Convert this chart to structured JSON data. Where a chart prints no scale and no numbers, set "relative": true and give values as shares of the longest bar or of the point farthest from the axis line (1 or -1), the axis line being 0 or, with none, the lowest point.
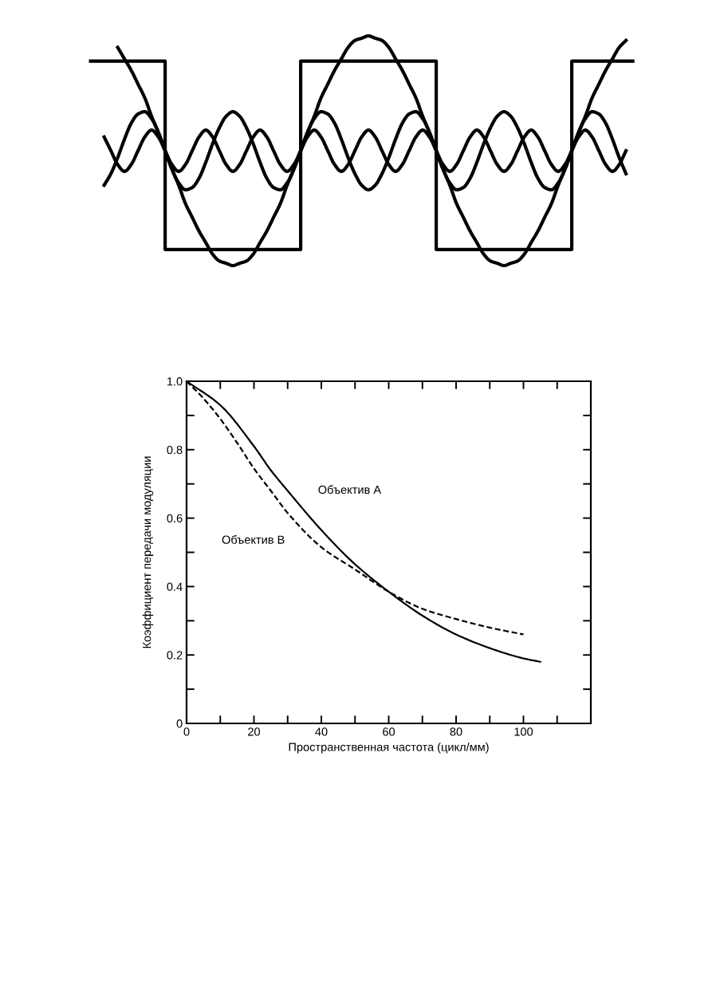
{
  "chart_data": [
    {
      "type": "line",
      "relative": true,
      "categories": [
        null,
        null,
        null,
        null,
        null,
        null,
        null,
        null,
        null,
        null,
        null,
        null,
        null,
        null,
        null,
        null,
        null,
        null,
        null,
        null,
        null,
        null,
        null,
        null,
        null,
        null,
        null,
        null,
        null,
        null,
        null,
        null,
        null,
        null,
        null,
        null,
        null,
        null,
        null,
        null,
        null,
        null,
        null,
        null,
        null,
        null,
        null,
        null,
        null,
        null,
        null,
        null,
        null,
        null,
        null,
        null,
        null,
        null,
        null,
        null,
        null,
        null,
        null,
        null,
        null,
        null,
        null,
        null,
        null,
        null,
        null,
        null,
        null,
        null,
        null,
        null,
        null,
        null,
        null,
        null,
        null
      ],
      "series": [
        {
          "type": "step",
          "color": "#000000",
          "values": [
            0.89,
            0.89,
            0.89,
            0.89,
            0.89,
            0.89,
            0.89,
            0.89,
            0.89,
            0.89,
            0.89,
            0.07,
            0.07,
            0.07,
            0.07,
            0.07,
            0.07,
            0.07,
            0.07,
            0.07,
            0.07,
            0.07,
            0.07,
            0.07,
            0.07,
            0.07,
            0.07,
            0.07,
            0.07,
            0.07,
            0.07,
            0.89,
            0.89,
            0.89,
            0.89,
            0.89,
            0.89,
            0.89,
            0.89,
            0.89,
            0.89,
            0.89,
            0.89,
            0.89,
            0.89,
            0.89,
            0.89,
            0.89,
            0.89,
            0.89,
            0.89,
            0.07,
            0.07,
            0.07,
            0.07,
            0.07,
            0.07,
            0.07,
            0.07,
            0.07,
            0.07,
            0.07,
            0.07,
            0.07,
            0.07,
            0.07,
            0.07,
            0.07,
            0.07,
            0.07,
            0.07,
            0.89,
            0.89,
            0.89,
            0.89,
            0.89,
            0.89,
            0.89,
            0.89,
            0.89,
            0.89
          ]
        },
        {
          "type": "line",
          "color": "#000000",
          "values": [
            null,
            null,
            null,
            null,
            0.95,
            0.9,
            0.85,
            0.79,
            0.73,
            0.65,
            0.58,
            0.5,
            0.42,
            0.35,
            0.27,
            0.21,
            0.15,
            0.1,
            0.05,
            0.02,
            0.01,
            0,
            0.01,
            0.02,
            0.05,
            0.1,
            0.15,
            0.21,
            0.27,
            0.35,
            0.42,
            0.5,
            0.58,
            0.65,
            0.73,
            0.79,
            0.85,
            0.9,
            0.95,
            0.98,
            0.99,
            1,
            0.99,
            0.98,
            0.95,
            0.9,
            0.85,
            0.79,
            0.73,
            0.65,
            0.58,
            0.5,
            0.42,
            0.35,
            0.27,
            0.21,
            0.15,
            0.1,
            0.05,
            0.02,
            0.01,
            0,
            0.01,
            0.02,
            0.05,
            0.1,
            0.15,
            0.21,
            0.27,
            0.35,
            0.42,
            0.5,
            0.58,
            0.65,
            0.73,
            0.79,
            0.85,
            0.9,
            0.95,
            0.98,
            null
          ]
        },
        {
          "type": "line",
          "color": "#000000",
          "values": [
            null,
            null,
            0.35,
            0.4,
            0.47,
            0.55,
            0.62,
            0.66,
            0.67,
            0.64,
            0.58,
            0.5,
            0.42,
            0.36,
            0.33,
            0.34,
            0.38,
            0.45,
            0.53,
            0.6,
            0.65,
            0.67,
            0.65,
            0.6,
            0.53,
            0.45,
            0.38,
            0.34,
            0.33,
            0.36,
            0.42,
            0.5,
            0.58,
            0.64,
            0.67,
            0.66,
            0.62,
            0.55,
            0.47,
            0.4,
            0.35,
            0.33,
            0.35,
            0.4,
            0.47,
            0.55,
            0.62,
            0.66,
            0.67,
            0.64,
            0.58,
            0.5,
            0.42,
            0.36,
            0.33,
            0.34,
            0.38,
            0.45,
            0.53,
            0.6,
            0.65,
            0.67,
            0.65,
            0.6,
            0.53,
            0.45,
            0.38,
            0.34,
            0.33,
            0.36,
            0.42,
            0.5,
            0.58,
            0.64,
            0.67,
            0.66,
            0.62,
            0.55,
            0.47,
            0.4,
            null
          ]
        },
        {
          "type": "line",
          "color": "#000000",
          "values": [
            null,
            null,
            0.56,
            0.5,
            0.44,
            0.41,
            0.44,
            0.5,
            0.56,
            0.59,
            0.56,
            0.5,
            0.44,
            0.41,
            0.44,
            0.5,
            0.56,
            0.59,
            0.56,
            0.5,
            0.44,
            0.41,
            0.44,
            0.5,
            0.56,
            0.59,
            0.56,
            0.5,
            0.44,
            0.41,
            0.44,
            0.5,
            0.56,
            0.59,
            0.56,
            0.5,
            0.44,
            0.41,
            0.44,
            0.5,
            0.56,
            0.59,
            0.56,
            0.5,
            0.44,
            0.41,
            0.44,
            0.5,
            0.56,
            0.59,
            0.56,
            0.5,
            0.44,
            0.41,
            0.44,
            0.5,
            0.56,
            0.59,
            0.56,
            0.5,
            0.44,
            0.41,
            0.44,
            0.5,
            0.56,
            0.59,
            0.56,
            0.5,
            0.44,
            0.41,
            0.44,
            0.5,
            0.56,
            0.59,
            0.56,
            0.5,
            0.44,
            0.41,
            0.44,
            0.5,
            null
          ]
        }
      ]
    },
    {
      "type": "line",
      "xlabel": "Пространственная частота (цикл/мм)",
      "ylabel": "Коэффициент передачи модуляции",
      "xlim": [
        0,
        120
      ],
      "ylim": [
        0,
        1.0
      ],
      "xticks": [
        0,
        {
          "value": 10,
          "label": null
        },
        20,
        {
          "value": 30,
          "label": null
        },
        40,
        {
          "value": 50,
          "label": null
        },
        60,
        {
          "value": 70,
          "label": null
        },
        80,
        {
          "value": 90,
          "label": null
        },
        100,
        {
          "value": 110,
          "label": null
        }
      ],
      "yticks": [
        0,
        {
          "value": 0.1,
          "label": null
        },
        0.2,
        {
          "value": 0.3,
          "label": null
        },
        0.4,
        {
          "value": 0.5,
          "label": null
        },
        0.6,
        {
          "value": 0.7,
          "label": null
        },
        0.8,
        {
          "value": 0.9,
          "label": null
        },
        {
          "value": 1.0,
          "label": "1.0"
        }
      ],
      "series": [
        {
          "name": "Объектив А",
          "color": "#000000",
          "line_style": "solid",
          "x": [
            0,
            10,
            20,
            25,
            30,
            40,
            50,
            60,
            70,
            80,
            90,
            100,
            105
          ],
          "values": [
            1.0,
            0.93,
            0.81,
            0.74,
            0.68,
            0.565,
            0.465,
            0.385,
            0.315,
            0.26,
            0.22,
            0.19,
            0.18
          ]
        },
        {
          "name": "Объектив B",
          "color": "#000000",
          "line_style": "dashed",
          "x": [
            0,
            5,
            10,
            15,
            20,
            25,
            30,
            40,
            50,
            60,
            70,
            80,
            90,
            100
          ],
          "values": [
            1.0,
            0.95,
            0.89,
            0.82,
            0.745,
            0.68,
            0.615,
            0.515,
            0.45,
            0.385,
            0.335,
            0.305,
            0.28,
            0.26
          ]
        }
      ]
    }
  ]
}
